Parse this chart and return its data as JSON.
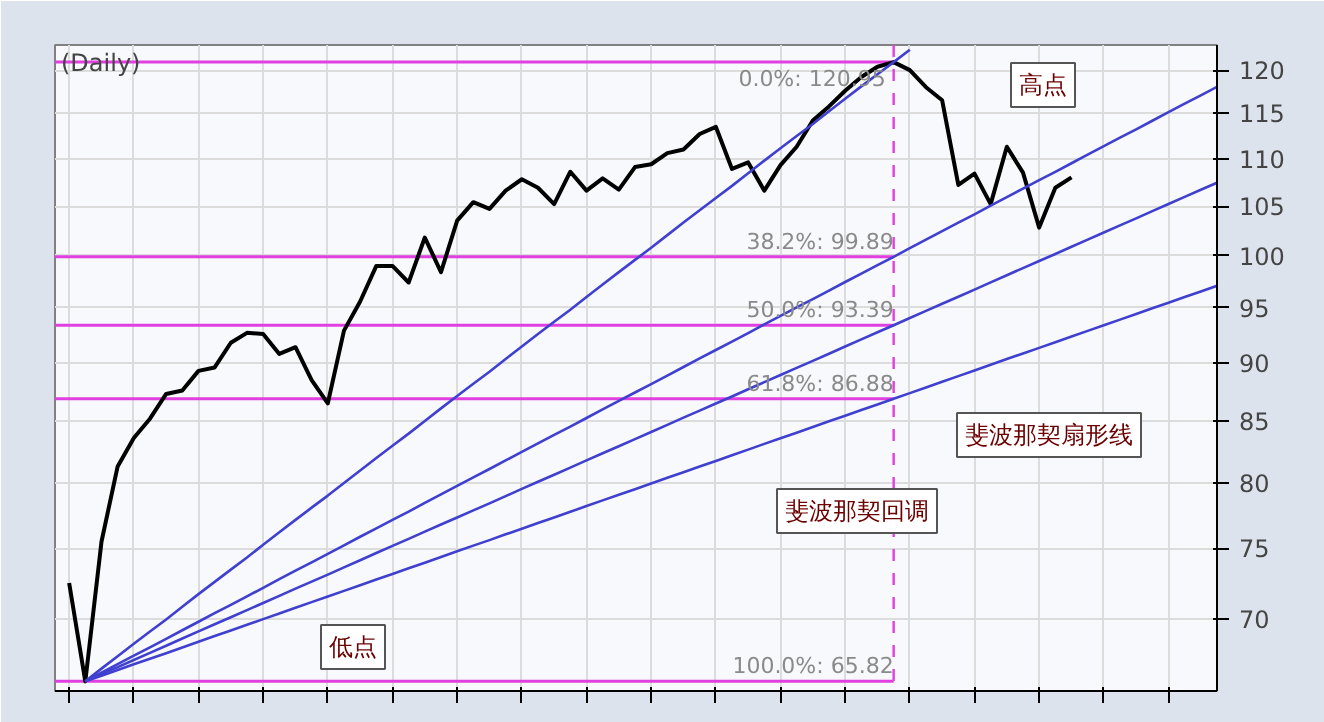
{
  "chart_data": {
    "type": "line",
    "title": "(Daily)",
    "log": "y",
    "grid": true,
    "marker": "none",
    "line_style": "solid",
    "tick_labels": "y",
    "categories": [
      null,
      null,
      null,
      null,
      null,
      null,
      null,
      null,
      null,
      null,
      null,
      null,
      null,
      null,
      null,
      null,
      null,
      null,
      null,
      null,
      null,
      null,
      null,
      null,
      null,
      null,
      null,
      null,
      null,
      null,
      null,
      null,
      null,
      null,
      null,
      null,
      null,
      null,
      null,
      null,
      null,
      null,
      null,
      null,
      null,
      null,
      null,
      null,
      null,
      null,
      null,
      null,
      null,
      null,
      null,
      null,
      null,
      null,
      null,
      null,
      null,
      null,
      null,
      null,
      null,
      null,
      null,
      null,
      null,
      null,
      null,
      null
    ],
    "ylim": [
      65.2,
      123.0
    ],
    "yticks": [
      70,
      75,
      80,
      85,
      90,
      95,
      100,
      105,
      110,
      115,
      120
    ],
    "series": [
      {
        "color": "#000000",
        "values": [
          72.5,
          65.82,
          75.5,
          81.3,
          83.6,
          85.2,
          87.3,
          87.6,
          89.3,
          89.6,
          91.8,
          92.7,
          92.6,
          90.8,
          91.4,
          88.5,
          86.5,
          92.9,
          95.6,
          99.0,
          99.0,
          97.4,
          101.8,
          98.4,
          103.5,
          105.4,
          104.7,
          106.6,
          107.8,
          106.9,
          105.2,
          108.6,
          106.6,
          107.9,
          106.7,
          109.1,
          109.4,
          110.6,
          111.0,
          112.7,
          113.5,
          108.9,
          109.6,
          106.6,
          109.3,
          111.3,
          114.2,
          115.8,
          117.6,
          119.2,
          120.4,
          120.95,
          120.0,
          118.0,
          116.5,
          107.2,
          108.4,
          105.2,
          111.3,
          108.5,
          102.8,
          106.9,
          108.0,
          null,
          null,
          null,
          null,
          null,
          null,
          null,
          null,
          null
        ]
      },
      {
        "color": "#4040d0",
        "values": [
          null,
          65.82,
          66.65,
          67.47,
          68.3,
          69.12,
          69.95,
          70.83,
          71.71,
          72.58,
          73.46,
          74.34,
          75.27,
          76.2,
          77.14,
          78.07,
          79.0,
          79.99,
          80.98,
          81.98,
          82.97,
          83.96,
          85.01,
          86.07,
          87.12,
          88.18,
          89.23,
          90.35,
          91.47,
          92.59,
          93.71,
          94.83,
          96.02,
          97.21,
          98.4,
          99.59,
          100.78,
          102.04,
          103.31,
          104.57,
          105.84,
          107.1,
          108.44,
          109.79,
          111.13,
          112.48,
          113.82,
          115.25,
          116.67,
          118.1,
          119.52,
          120.95,
          122.43,
          null,
          null,
          null,
          null,
          null,
          null,
          null,
          null,
          null,
          null,
          null,
          null,
          null,
          null,
          null,
          null,
          null,
          null,
          null
        ]
      },
      {
        "color": "#4040d0",
        "values": [
          null,
          65.82,
          66.38,
          66.94,
          67.5,
          68.06,
          68.62,
          69.21,
          69.79,
          70.38,
          70.96,
          71.55,
          72.16,
          72.77,
          73.38,
          73.99,
          74.6,
          75.23,
          75.87,
          76.5,
          77.14,
          77.77,
          78.43,
          79.1,
          79.76,
          80.43,
          81.09,
          81.78,
          82.47,
          83.16,
          83.85,
          84.54,
          85.26,
          85.98,
          86.7,
          87.42,
          88.14,
          88.89,
          89.64,
          90.4,
          91.15,
          91.9,
          92.68,
          93.47,
          94.25,
          95.04,
          95.82,
          96.63,
          97.45,
          98.26,
          99.08,
          99.89,
          100.74,
          101.59,
          102.45,
          103.3,
          104.15,
          105.04,
          105.93,
          106.81,
          107.7,
          108.59,
          109.51,
          110.44,
          111.36,
          112.29,
          113.21,
          114.18,
          115.14,
          116.11,
          117.07,
          118.04
        ]
      },
      {
        "color": "#4040d0",
        "values": [
          null,
          65.82,
          66.29,
          66.75,
          67.22,
          67.69,
          68.16,
          68.65,
          69.13,
          69.62,
          70.1,
          70.59,
          71.09,
          71.59,
          72.1,
          72.6,
          73.1,
          73.62,
          74.14,
          74.67,
          75.19,
          75.71,
          76.25,
          76.79,
          77.32,
          77.86,
          78.4,
          78.96,
          79.52,
          80.08,
          80.64,
          81.2,
          81.78,
          82.36,
          82.93,
          83.51,
          84.09,
          84.69,
          85.29,
          85.88,
          86.48,
          87.08,
          87.7,
          88.32,
          88.94,
          89.56,
          90.18,
          90.82,
          91.46,
          92.11,
          92.75,
          93.39,
          94.06,
          94.72,
          95.39,
          96.05,
          96.72,
          97.41,
          98.1,
          98.79,
          99.48,
          100.17,
          100.88,
          101.59,
          102.31,
          103.02,
          103.73,
          104.47,
          105.21,
          105.95,
          106.69,
          107.43
        ]
      },
      {
        "color": "#4040d0",
        "values": [
          null,
          65.82,
          66.19,
          66.56,
          66.93,
          67.3,
          67.67,
          68.05,
          68.43,
          68.82,
          69.2,
          69.58,
          69.97,
          70.36,
          70.76,
          71.15,
          71.54,
          71.94,
          72.34,
          72.75,
          73.15,
          73.55,
          73.96,
          74.38,
          74.79,
          75.21,
          75.62,
          76.05,
          76.47,
          76.9,
          77.32,
          77.75,
          78.19,
          78.63,
          79.06,
          79.5,
          79.94,
          80.39,
          80.84,
          81.29,
          81.74,
          82.19,
          82.65,
          83.12,
          83.58,
          84.04,
          84.5,
          84.98,
          85.45,
          85.93,
          86.4,
          86.88,
          87.37,
          87.86,
          88.35,
          88.84,
          89.33,
          89.83,
          90.34,
          90.84,
          91.34,
          91.84,
          92.36,
          92.88,
          93.39,
          93.91,
          94.43,
          94.96,
          95.49,
          96.02,
          96.55,
          97.08
        ]
      }
    ],
    "ref_lines": [
      {
        "axis": "y",
        "value": 120.95,
        "label": "0.0%: 120.95",
        "color": "#e040e0"
      },
      {
        "axis": "y",
        "value": 99.89,
        "label": "38.2%: 99.89",
        "color": "#e040e0"
      },
      {
        "axis": "y",
        "value": 93.39,
        "label": "50.0%: 93.39",
        "color": "#e040e0"
      },
      {
        "axis": "y",
        "value": 86.88,
        "label": "61.8%: 86.88",
        "color": "#e040e0"
      },
      {
        "axis": "y",
        "value": 65.82,
        "label": "100.0%: 65.82",
        "color": "#e040e0"
      }
    ],
    "annotations": [
      "高点",
      "低点",
      "斐波那契回调",
      "斐波那契扇形线"
    ]
  }
}
